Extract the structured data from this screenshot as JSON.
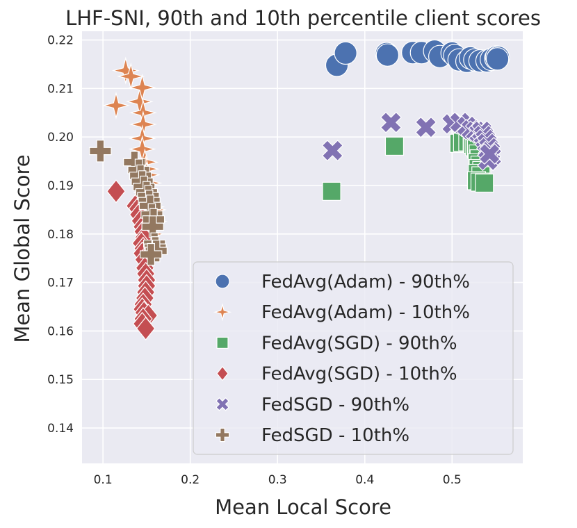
{
  "chart_data": {
    "type": "scatter",
    "title": "LHF-SNI, 90th and 10th percentile client scores",
    "xlabel": "Mean Local Score",
    "ylabel": "Mean Global Score",
    "xlim": [
      0.076,
      0.581
    ],
    "ylim": [
      0.1327,
      0.2218
    ],
    "xticks": [
      0.1,
      0.2,
      0.3,
      0.4,
      0.5
    ],
    "xtick_labels": [
      "0.1",
      "0.2",
      "0.3",
      "0.4",
      "0.5"
    ],
    "yticks": [
      0.14,
      0.15,
      0.16,
      0.17,
      0.18,
      0.19,
      0.2,
      0.21,
      0.22
    ],
    "ytick_labels": [
      "0.14",
      "0.15",
      "0.16",
      "0.17",
      "0.18",
      "0.19",
      "0.20",
      "0.21",
      "0.22"
    ],
    "grid": true,
    "legend_position": "lower right",
    "series": [
      {
        "name": "FedAvg(Adam) - 90th%",
        "marker": "circle",
        "color": "#4c72b0",
        "points": [
          [
            0.368,
            0.2148
          ],
          [
            0.378,
            0.2173
          ],
          [
            0.425,
            0.2172
          ],
          [
            0.426,
            0.2169
          ],
          [
            0.455,
            0.2174
          ],
          [
            0.465,
            0.2174
          ],
          [
            0.48,
            0.2177
          ],
          [
            0.486,
            0.2166
          ],
          [
            0.5,
            0.2173
          ],
          [
            0.503,
            0.2168
          ],
          [
            0.508,
            0.2159
          ],
          [
            0.517,
            0.2156
          ],
          [
            0.521,
            0.2163
          ],
          [
            0.526,
            0.2159
          ],
          [
            0.532,
            0.2157
          ],
          [
            0.54,
            0.2157
          ],
          [
            0.545,
            0.216
          ],
          [
            0.55,
            0.2162
          ],
          [
            0.551,
            0.2165
          ],
          [
            0.553,
            0.2164
          ],
          [
            0.552,
            0.2161
          ]
        ]
      },
      {
        "name": "FedAvg(Adam) - 10th%",
        "marker": "star4",
        "color": "#dd8452",
        "points": [
          [
            0.115,
            0.2065
          ],
          [
            0.126,
            0.2137
          ],
          [
            0.132,
            0.2125
          ],
          [
            0.142,
            0.2073
          ],
          [
            0.145,
            0.2102
          ],
          [
            0.146,
            0.205
          ],
          [
            0.146,
            0.2026
          ],
          [
            0.145,
            0.1997
          ],
          [
            0.145,
            0.1975
          ],
          [
            0.148,
            0.1948
          ],
          [
            0.149,
            0.1934
          ],
          [
            0.15,
            0.1922
          ],
          [
            0.152,
            0.1905
          ],
          [
            0.15,
            0.1886
          ],
          [
            0.151,
            0.1874
          ],
          [
            0.153,
            0.1862
          ],
          [
            0.155,
            0.1856
          ],
          [
            0.157,
            0.185
          ],
          [
            0.154,
            0.184
          ],
          [
            0.156,
            0.183
          ],
          [
            0.158,
            0.1826
          ],
          [
            0.153,
            0.1812
          ],
          [
            0.155,
            0.18
          ]
        ]
      },
      {
        "name": "FedAvg(SGD) - 90th%",
        "marker": "square",
        "color": "#55a868",
        "points": [
          [
            0.362,
            0.1888
          ],
          [
            0.434,
            0.1981
          ],
          [
            0.508,
            0.1987
          ],
          [
            0.512,
            0.1989
          ],
          [
            0.518,
            0.199
          ],
          [
            0.523,
            0.1988
          ],
          [
            0.524,
            0.1985
          ],
          [
            0.526,
            0.198
          ],
          [
            0.528,
            0.1975
          ],
          [
            0.53,
            0.1965
          ],
          [
            0.531,
            0.1955
          ],
          [
            0.529,
            0.1947
          ],
          [
            0.532,
            0.1942
          ],
          [
            0.53,
            0.1935
          ],
          [
            0.534,
            0.1931
          ],
          [
            0.529,
            0.1925
          ],
          [
            0.533,
            0.192
          ],
          [
            0.528,
            0.191
          ],
          [
            0.532,
            0.1907
          ],
          [
            0.537,
            0.1905
          ]
        ]
      },
      {
        "name": "FedAvg(SGD) - 10th%",
        "marker": "diamond",
        "color": "#c44e52",
        "points": [
          [
            0.115,
            0.1888
          ],
          [
            0.137,
            0.1858
          ],
          [
            0.14,
            0.1852
          ],
          [
            0.141,
            0.184
          ],
          [
            0.143,
            0.1827
          ],
          [
            0.145,
            0.1815
          ],
          [
            0.146,
            0.1805
          ],
          [
            0.147,
            0.1793
          ],
          [
            0.144,
            0.1781
          ],
          [
            0.146,
            0.177
          ],
          [
            0.145,
            0.176
          ],
          [
            0.147,
            0.1747
          ],
          [
            0.148,
            0.173
          ],
          [
            0.149,
            0.1718
          ],
          [
            0.15,
            0.1705
          ],
          [
            0.15,
            0.1693
          ],
          [
            0.149,
            0.168
          ],
          [
            0.148,
            0.1668
          ],
          [
            0.146,
            0.1655
          ],
          [
            0.145,
            0.1645
          ],
          [
            0.147,
            0.1638
          ],
          [
            0.152,
            0.1632
          ],
          [
            0.146,
            0.1625
          ],
          [
            0.145,
            0.1615
          ],
          [
            0.149,
            0.1605
          ]
        ]
      },
      {
        "name": "FedSGD - 90th%",
        "marker": "x",
        "color": "#8172b3",
        "points": [
          [
            0.363,
            0.1972
          ],
          [
            0.43,
            0.203
          ],
          [
            0.47,
            0.202
          ],
          [
            0.5,
            0.2027
          ],
          [
            0.509,
            0.203
          ],
          [
            0.517,
            0.2022
          ],
          [
            0.522,
            0.2015
          ],
          [
            0.527,
            0.2012
          ],
          [
            0.531,
            0.2008
          ],
          [
            0.534,
            0.2012
          ],
          [
            0.536,
            0.2003
          ],
          [
            0.538,
            0.1995
          ],
          [
            0.54,
            0.1987
          ],
          [
            0.542,
            0.1978
          ],
          [
            0.544,
            0.197
          ],
          [
            0.545,
            0.196
          ],
          [
            0.541,
            0.1952
          ],
          [
            0.543,
            0.1965
          ]
        ]
      },
      {
        "name": "FedSGD - 10th%",
        "marker": "plus",
        "color": "#937860",
        "points": [
          [
            0.097,
            0.1971
          ],
          [
            0.136,
            0.1948
          ],
          [
            0.141,
            0.1932
          ],
          [
            0.143,
            0.192
          ],
          [
            0.145,
            0.1908
          ],
          [
            0.147,
            0.1897
          ],
          [
            0.15,
            0.1886
          ],
          [
            0.152,
            0.1878
          ],
          [
            0.153,
            0.1868
          ],
          [
            0.154,
            0.1858
          ],
          [
            0.156,
            0.184
          ],
          [
            0.158,
            0.183
          ],
          [
            0.157,
            0.1815
          ],
          [
            0.159,
            0.178
          ],
          [
            0.16,
            0.1772
          ],
          [
            0.161,
            0.1765
          ],
          [
            0.155,
            0.1758
          ]
        ]
      }
    ]
  }
}
